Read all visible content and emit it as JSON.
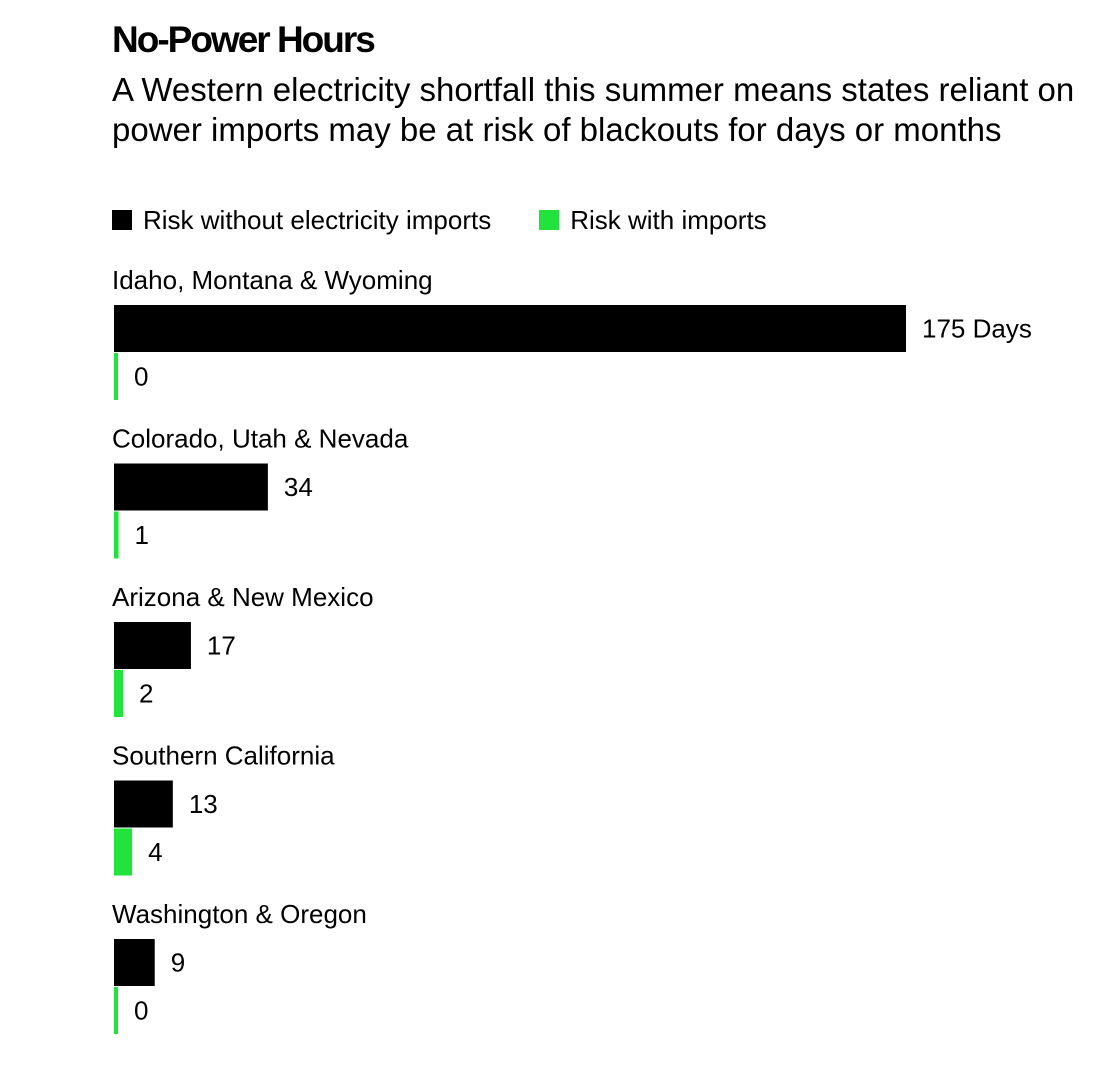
{
  "chart_data": {
    "type": "bar",
    "title": "No-Power Hours",
    "subtitle": "A Western electricity shortfall this summer means states reliant on power imports may be at risk of blackouts for days or months",
    "categories": [
      "Idaho, Montana & Wyoming",
      "Colorado, Utah & Nevada",
      "Arizona & New Mexico",
      "Southern California",
      "Washington & Oregon"
    ],
    "series": [
      {
        "name": "Risk without electricity imports",
        "color": "#000000",
        "values": [
          175,
          34,
          17,
          13,
          9
        ],
        "labels": [
          "175 Days",
          "34",
          "17",
          "13",
          "9"
        ]
      },
      {
        "name": "Risk with imports",
        "color": "#22e33b",
        "values": [
          0,
          1,
          2,
          4,
          0
        ],
        "labels": [
          "0",
          "1",
          "2",
          "4",
          "0"
        ]
      }
    ],
    "xlim": [
      0,
      175
    ],
    "orientation": "horizontal",
    "legend": "top-left",
    "grid": false
  }
}
